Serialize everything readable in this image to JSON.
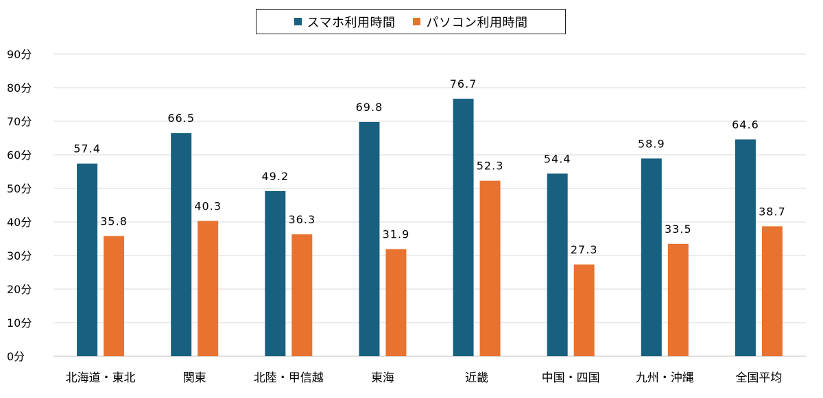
{
  "chart_data": {
    "type": "bar",
    "categories": [
      "北海道・東北",
      "関東",
      "北陸・甲信越",
      "東海",
      "近畿",
      "中国・四国",
      "九州・沖縄",
      "全国平均"
    ],
    "series": [
      {
        "name": "スマホ利用時間",
        "color": "#17607f",
        "values": [
          57.4,
          66.5,
          49.2,
          69.8,
          76.7,
          54.4,
          58.9,
          64.6
        ],
        "labels": [
          "57.4",
          "66.5",
          "49.2",
          "69.8",
          "76.7",
          "54.4",
          "58.9",
          "64.6"
        ]
      },
      {
        "name": "パソコン利用時間",
        "color": "#e8722f",
        "values": [
          35.8,
          40.3,
          36.3,
          31.9,
          52.3,
          27.3,
          33.5,
          38.7
        ],
        "labels": [
          "35.8",
          "40.3",
          "36.3",
          "31.9",
          "52.3",
          "27.3",
          "33.5",
          "38.7"
        ]
      }
    ],
    "ylim": [
      0,
      90
    ],
    "yticks": [
      "0分",
      "10分",
      "20分",
      "30分",
      "40分",
      "50分",
      "60分",
      "70分",
      "80分",
      "90分"
    ],
    "grid": true,
    "legend_position": "top-center"
  }
}
